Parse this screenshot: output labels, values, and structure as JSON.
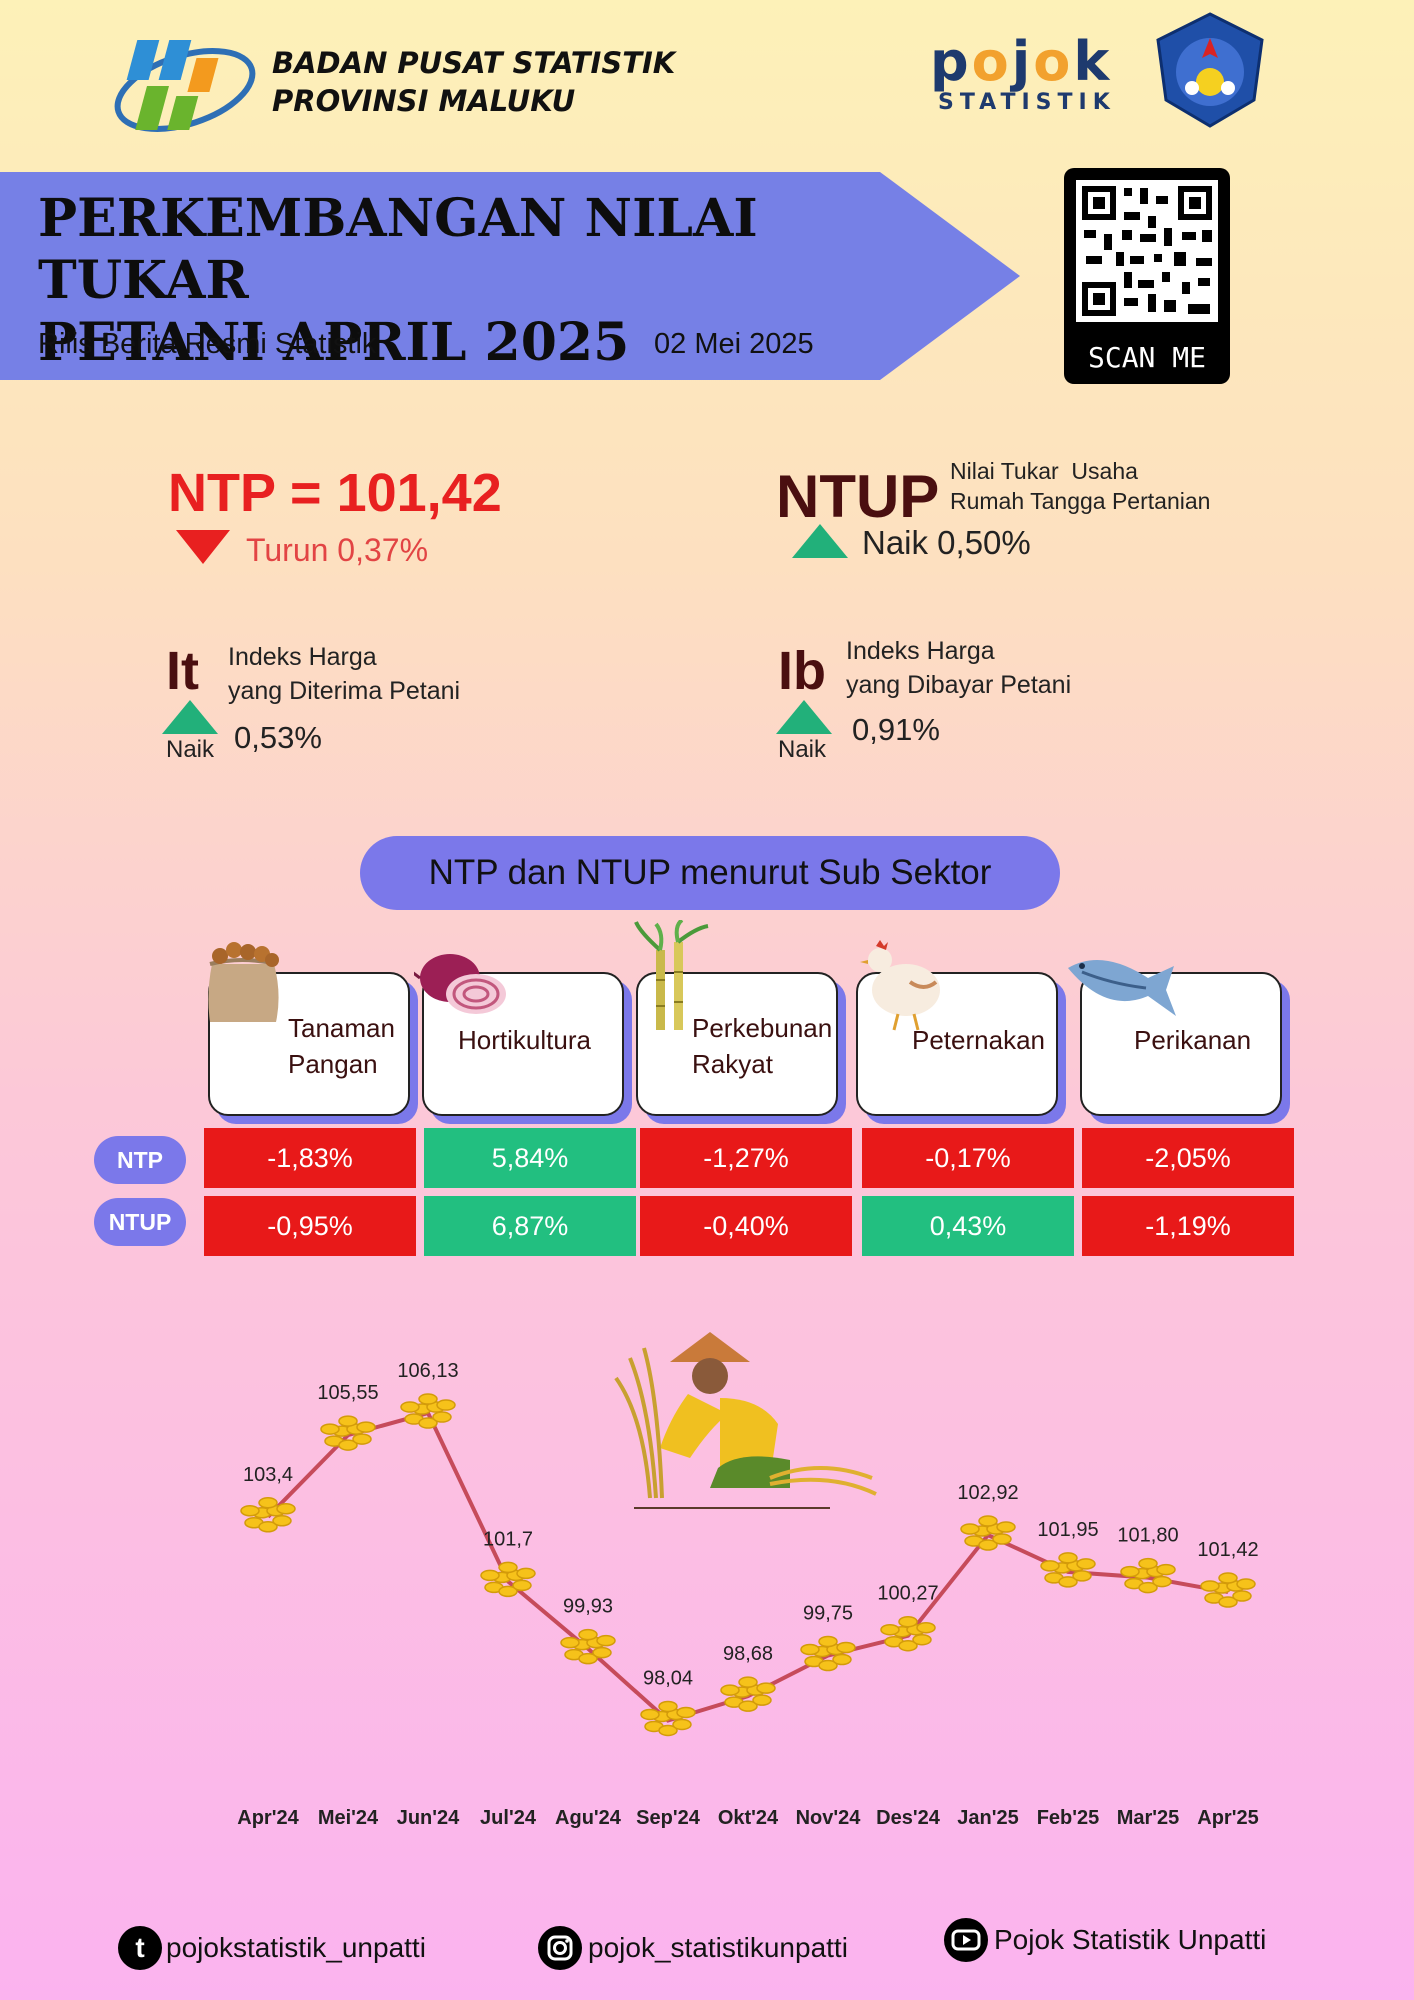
{
  "header": {
    "org_line1": "BADAN PUSAT STATISTIK",
    "org_line2": "PROVINSI MALUKU",
    "pojok_brand": "pojok",
    "pojok_sub": "STATISTIK"
  },
  "banner": {
    "title_line1": "PERKEMBANGAN NILAI TUKAR",
    "title_line2": "PETANI APRIL 2025",
    "subtitle": "Rilis Berita Resmi Statistik",
    "date": "02 Mei 2025",
    "qr_label": "SCAN ME"
  },
  "indicators": {
    "ntp": {
      "label": "NTP = 101,42",
      "change": "Turun 0,37%",
      "direction": "down"
    },
    "ntup": {
      "label": "NTUP",
      "desc_line1": "Nilai Tukar  Usaha",
      "desc_line2": "Rumah Tangga Pertanian",
      "change": "Naik 0,50%",
      "direction": "up"
    },
    "it": {
      "label": "It",
      "desc_line1": "Indeks Harga",
      "desc_line2": "yang Diterima Petani",
      "naik": "Naik",
      "value": "0,53%",
      "direction": "up"
    },
    "ib": {
      "label": "Ib",
      "desc_line1": "Indeks Harga",
      "desc_line2": "yang Dibayar Petani",
      "naik": "Naik",
      "value": "0,91%",
      "direction": "up"
    }
  },
  "subsector": {
    "title": "NTP dan NTUP menurut Sub Sektor",
    "row_labels": [
      "NTP",
      "NTUP"
    ],
    "sectors": [
      {
        "line1": "Tanaman",
        "line2": "Pangan",
        "icon": "rice-sack-icon",
        "ntp": "-1,83%",
        "ntup": "-0,95%"
      },
      {
        "line1": "Hortikultura",
        "line2": "",
        "icon": "shallot-icon",
        "ntp": "5,84%",
        "ntup": "6,87%"
      },
      {
        "line1": "Perkebunan",
        "line2": "Rakyat",
        "icon": "sugarcane-icon",
        "ntp": "-1,27%",
        "ntup": "-0,40%"
      },
      {
        "line1": "Peternakan",
        "line2": "",
        "icon": "chicken-icon",
        "ntp": "-0,17%",
        "ntup": "0,43%"
      },
      {
        "line1": "Perikanan",
        "line2": "",
        "icon": "fish-icon",
        "ntp": "-2,05%",
        "ntup": "-1,19%"
      }
    ],
    "colors": {
      "negative": "#e81919",
      "positive": "#22bf80"
    }
  },
  "chart_data": {
    "type": "line",
    "categories": [
      "Apr'24",
      "Mei'24",
      "Jun'24",
      "Jul'24",
      "Agu'24",
      "Sep'24",
      "Okt'24",
      "Nov'24",
      "Des'24",
      "Jan'25",
      "Feb'25",
      "Mar'25",
      "Apr'25"
    ],
    "values": [
      103.4,
      105.55,
      106.13,
      101.7,
      99.93,
      98.04,
      98.68,
      99.75,
      100.27,
      102.92,
      101.95,
      101.8,
      101.42
    ],
    "labels": [
      "103,4",
      "105,55",
      "106,13",
      "101,7",
      "99,93",
      "98,04",
      "98,68",
      "99,75",
      "100,27",
      "102,92",
      "101,95",
      "101,80",
      "101,42"
    ],
    "line_color": "#c64b5b",
    "marker": "gold-coins-icon",
    "title": "",
    "xlabel": "",
    "ylabel": "",
    "grid": false
  },
  "footer": {
    "tiktok": "pojokstatistik_unpatti",
    "instagram": "pojok_statistikunpatti",
    "youtube": "Pojok Statistik Unpatti"
  }
}
